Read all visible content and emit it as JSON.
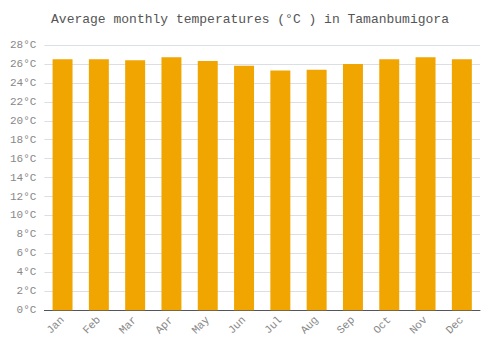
{
  "chart_data": {
    "type": "bar",
    "title": "Average monthly temperatures (°C ) in Tamanbumigora",
    "categories": [
      "Jan",
      "Feb",
      "Mar",
      "Apr",
      "May",
      "Jun",
      "Jul",
      "Aug",
      "Sep",
      "Oct",
      "Nov",
      "Dec"
    ],
    "values": [
      26.5,
      26.5,
      26.4,
      26.7,
      26.3,
      25.8,
      25.3,
      25.4,
      26.0,
      26.5,
      26.7,
      26.5
    ],
    "color": "#F0A500",
    "ylim": [
      0,
      28
    ],
    "yticks": [
      {
        "value": 0,
        "label": "0°C"
      },
      {
        "value": 2,
        "label": "2°C"
      },
      {
        "value": 4,
        "label": "4°C"
      },
      {
        "value": 6,
        "label": "6°C"
      },
      {
        "value": 8,
        "label": "8°C"
      },
      {
        "value": 10,
        "label": "10°C"
      },
      {
        "value": 12,
        "label": "12°C"
      },
      {
        "value": 14,
        "label": "14°C"
      },
      {
        "value": 16,
        "label": "16°C"
      },
      {
        "value": 18,
        "label": "18°C"
      },
      {
        "value": 20,
        "label": "20°C"
      },
      {
        "value": 22,
        "label": "22°C"
      },
      {
        "value": 24,
        "label": "24°C"
      },
      {
        "value": 26,
        "label": "26°C"
      },
      {
        "value": 28,
        "label": "28°C"
      }
    ],
    "grid": true
  }
}
